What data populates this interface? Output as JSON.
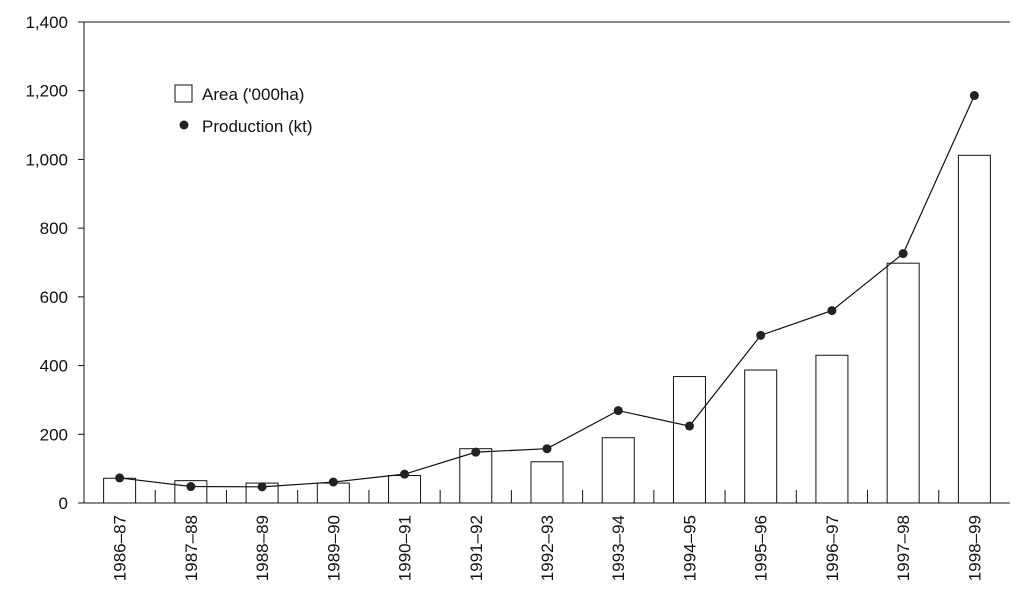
{
  "chart_data": {
    "type": "bar",
    "categories": [
      "1986–87",
      "1987–88",
      "1988–89",
      "1989–90",
      "1990–91",
      "1991–92",
      "1992–93",
      "1993–94",
      "1994–95",
      "1995–96",
      "1996–97",
      "1997–98",
      "1998–99"
    ],
    "series": [
      {
        "name": "Area ('000ha)",
        "type": "bar",
        "values": [
          72,
          65,
          58,
          58,
          80,
          158,
          120,
          190,
          368,
          387,
          430,
          698,
          1012
        ]
      },
      {
        "name": "Production (kt)",
        "type": "line",
        "values": [
          73,
          48,
          47,
          61,
          84,
          148,
          158,
          269,
          224,
          488,
          560,
          726,
          1186
        ]
      }
    ],
    "y_ticks": [
      "0",
      "200",
      "400",
      "600",
      "800",
      "1,000",
      "1,200",
      "1,400"
    ],
    "ylim": [
      0,
      1400
    ],
    "grid": false,
    "legend_position": "top-left",
    "colors": {
      "bar_fill": "#ffffff",
      "bar_stroke": "#111111",
      "line": "#111111",
      "marker": "#222222",
      "axis": "#111111"
    }
  }
}
